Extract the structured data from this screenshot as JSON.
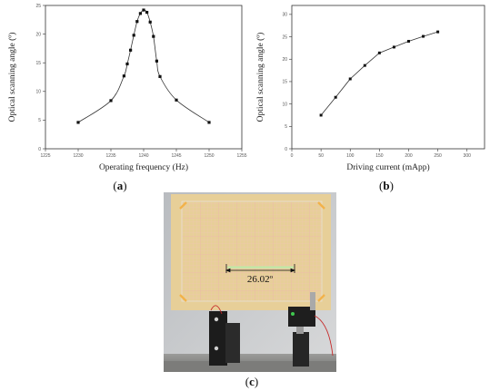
{
  "chart_data": [
    {
      "type": "scatter",
      "panel_label": "a",
      "xlabel": "Operating frequency (Hz)",
      "ylabel": "Optical scanning angle (º)",
      "xlim": [
        1225,
        1255
      ],
      "ylim": [
        0,
        25
      ],
      "xticks": [
        1225,
        1230,
        1235,
        1240,
        1245,
        1250,
        1255
      ],
      "yticks": [
        0,
        5,
        10,
        15,
        20,
        25
      ],
      "grid": false,
      "fit_curve": true,
      "series": [
        {
          "x": [
            1230,
            1235,
            1237,
            1237.5,
            1238,
            1238.5,
            1239,
            1239.5,
            1240,
            1240.5,
            1241,
            1241.5,
            1242,
            1242.5,
            1245,
            1250
          ],
          "y": [
            4.6,
            8.4,
            12.7,
            14.8,
            17.2,
            19.8,
            22.2,
            23.6,
            24.2,
            23.8,
            22.1,
            19.6,
            15.3,
            12.6,
            8.5,
            4.6
          ]
        }
      ]
    },
    {
      "type": "line",
      "panel_label": "b",
      "xlabel": "Driving current (mApp)",
      "ylabel": "Optical scanning angle (º)",
      "xlim": [
        0,
        330
      ],
      "ylim": [
        0,
        32
      ],
      "xticks": [
        0,
        50,
        100,
        150,
        200,
        250,
        300
      ],
      "yticks": [
        0,
        5,
        10,
        15,
        20,
        25,
        30
      ],
      "grid": false,
      "series": [
        {
          "x": [
            50,
            75,
            100,
            125,
            150,
            175,
            200,
            225,
            250
          ],
          "y": [
            7.5,
            11.5,
            15.6,
            18.6,
            21.4,
            22.7,
            24.0,
            25.1,
            26.1
          ]
        }
      ]
    }
  ],
  "photo": {
    "panel_label": "c",
    "measurement_label": "26.02º"
  }
}
